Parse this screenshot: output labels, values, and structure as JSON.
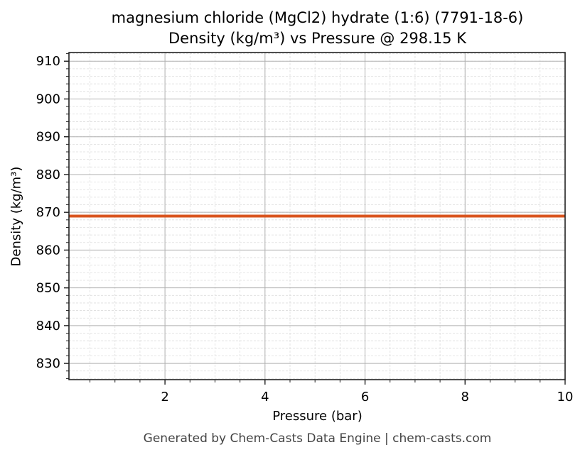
{
  "title_line1": "magnesium chloride (MgCl2) hydrate (1:6) (7791-18-6)",
  "title_line2": "Density (kg/m³) vs Pressure @ 298.15 K",
  "footer": "Generated by Chem-Casts Data Engine | chem-casts.com",
  "colors": {
    "line": "#d9541e",
    "major_grid": "#b0b0b0",
    "minor_grid": "#dddddd",
    "axes": "#222222"
  },
  "chart_data": {
    "type": "line",
    "title": "magnesium chloride (MgCl2) hydrate (1:6) (7791-18-6)\nDensity (kg/m³) vs Pressure @ 298.15 K",
    "xlabel": "Pressure (bar)",
    "ylabel": "Density (kg/m³)",
    "xlim": [
      0.08,
      10
    ],
    "ylim": [
      825.7,
      912.3
    ],
    "x_ticks": [
      2,
      4,
      6,
      8,
      10
    ],
    "x_tick_labels": [
      "2",
      "4",
      "6",
      "8",
      "10"
    ],
    "x_minor_step": 0.5,
    "y_ticks": [
      830,
      840,
      850,
      860,
      870,
      880,
      890,
      900,
      910
    ],
    "y_tick_labels": [
      "830",
      "840",
      "850",
      "860",
      "870",
      "880",
      "890",
      "900",
      "910"
    ],
    "y_minor_step": 2,
    "grid": true,
    "legend": null,
    "series": [
      {
        "name": "Density",
        "color": "#d9541e",
        "x": [
          0.08,
          1,
          2,
          3,
          4,
          5,
          6,
          7,
          8,
          9,
          10
        ],
        "values": [
          869.0,
          869.0,
          869.0,
          869.0,
          869.0,
          869.0,
          869.0,
          869.0,
          869.0,
          869.0,
          869.0
        ]
      }
    ]
  }
}
